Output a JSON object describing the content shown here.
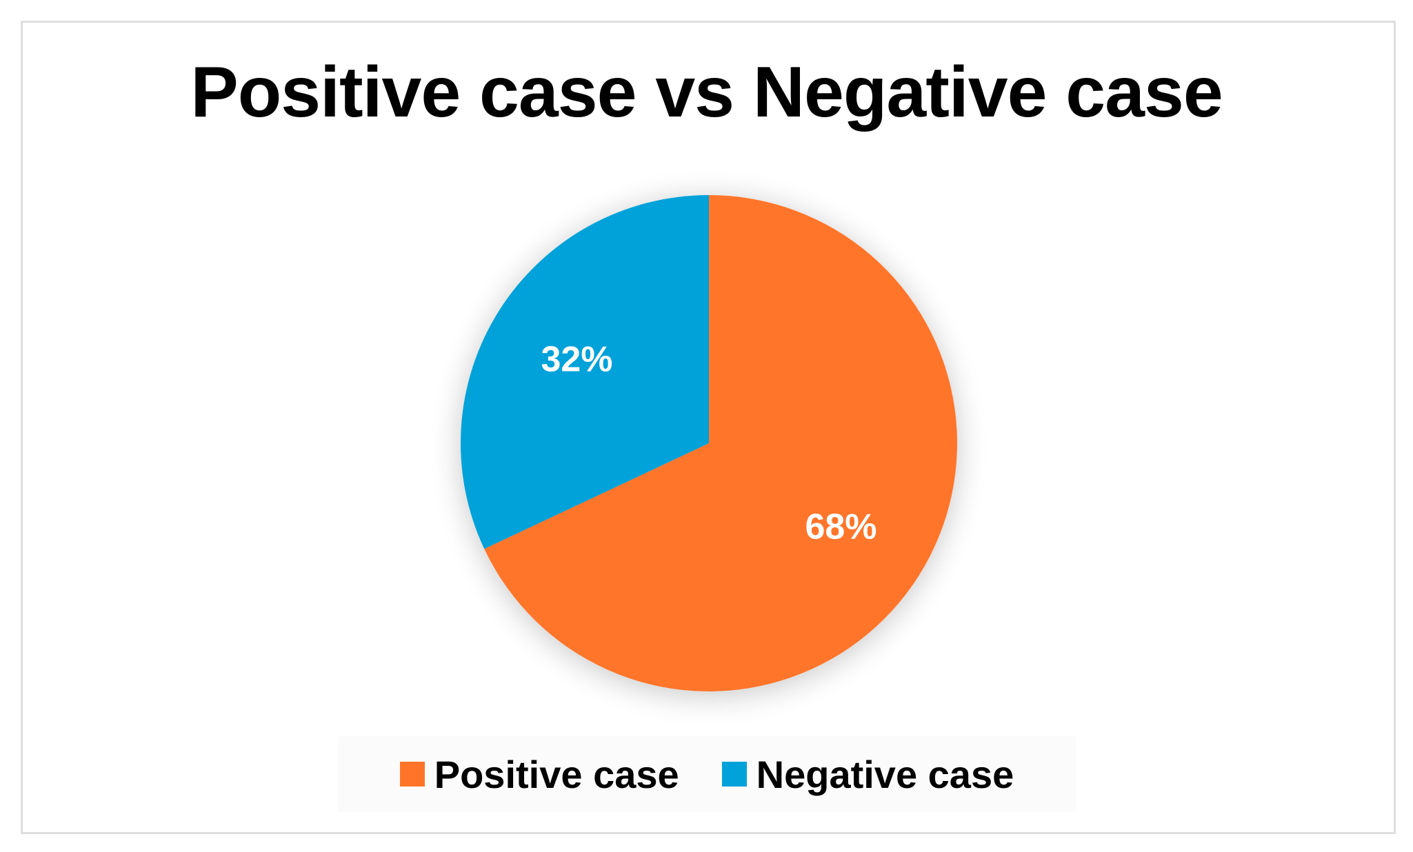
{
  "chart_data": {
    "type": "pie",
    "title": "Positive case vs Negative case",
    "slices": [
      {
        "label": "Positive case",
        "value": 68,
        "display": "68%",
        "color": "#FF7429"
      },
      {
        "label": "Negative case",
        "value": 32,
        "display": "32%",
        "color": "#00A2D9"
      }
    ],
    "legend": [
      "Positive case",
      "Negative case"
    ],
    "legend_position": "bottom",
    "start": "12 o'clock, clockwise",
    "data_label_color": "#FFFFFF"
  }
}
